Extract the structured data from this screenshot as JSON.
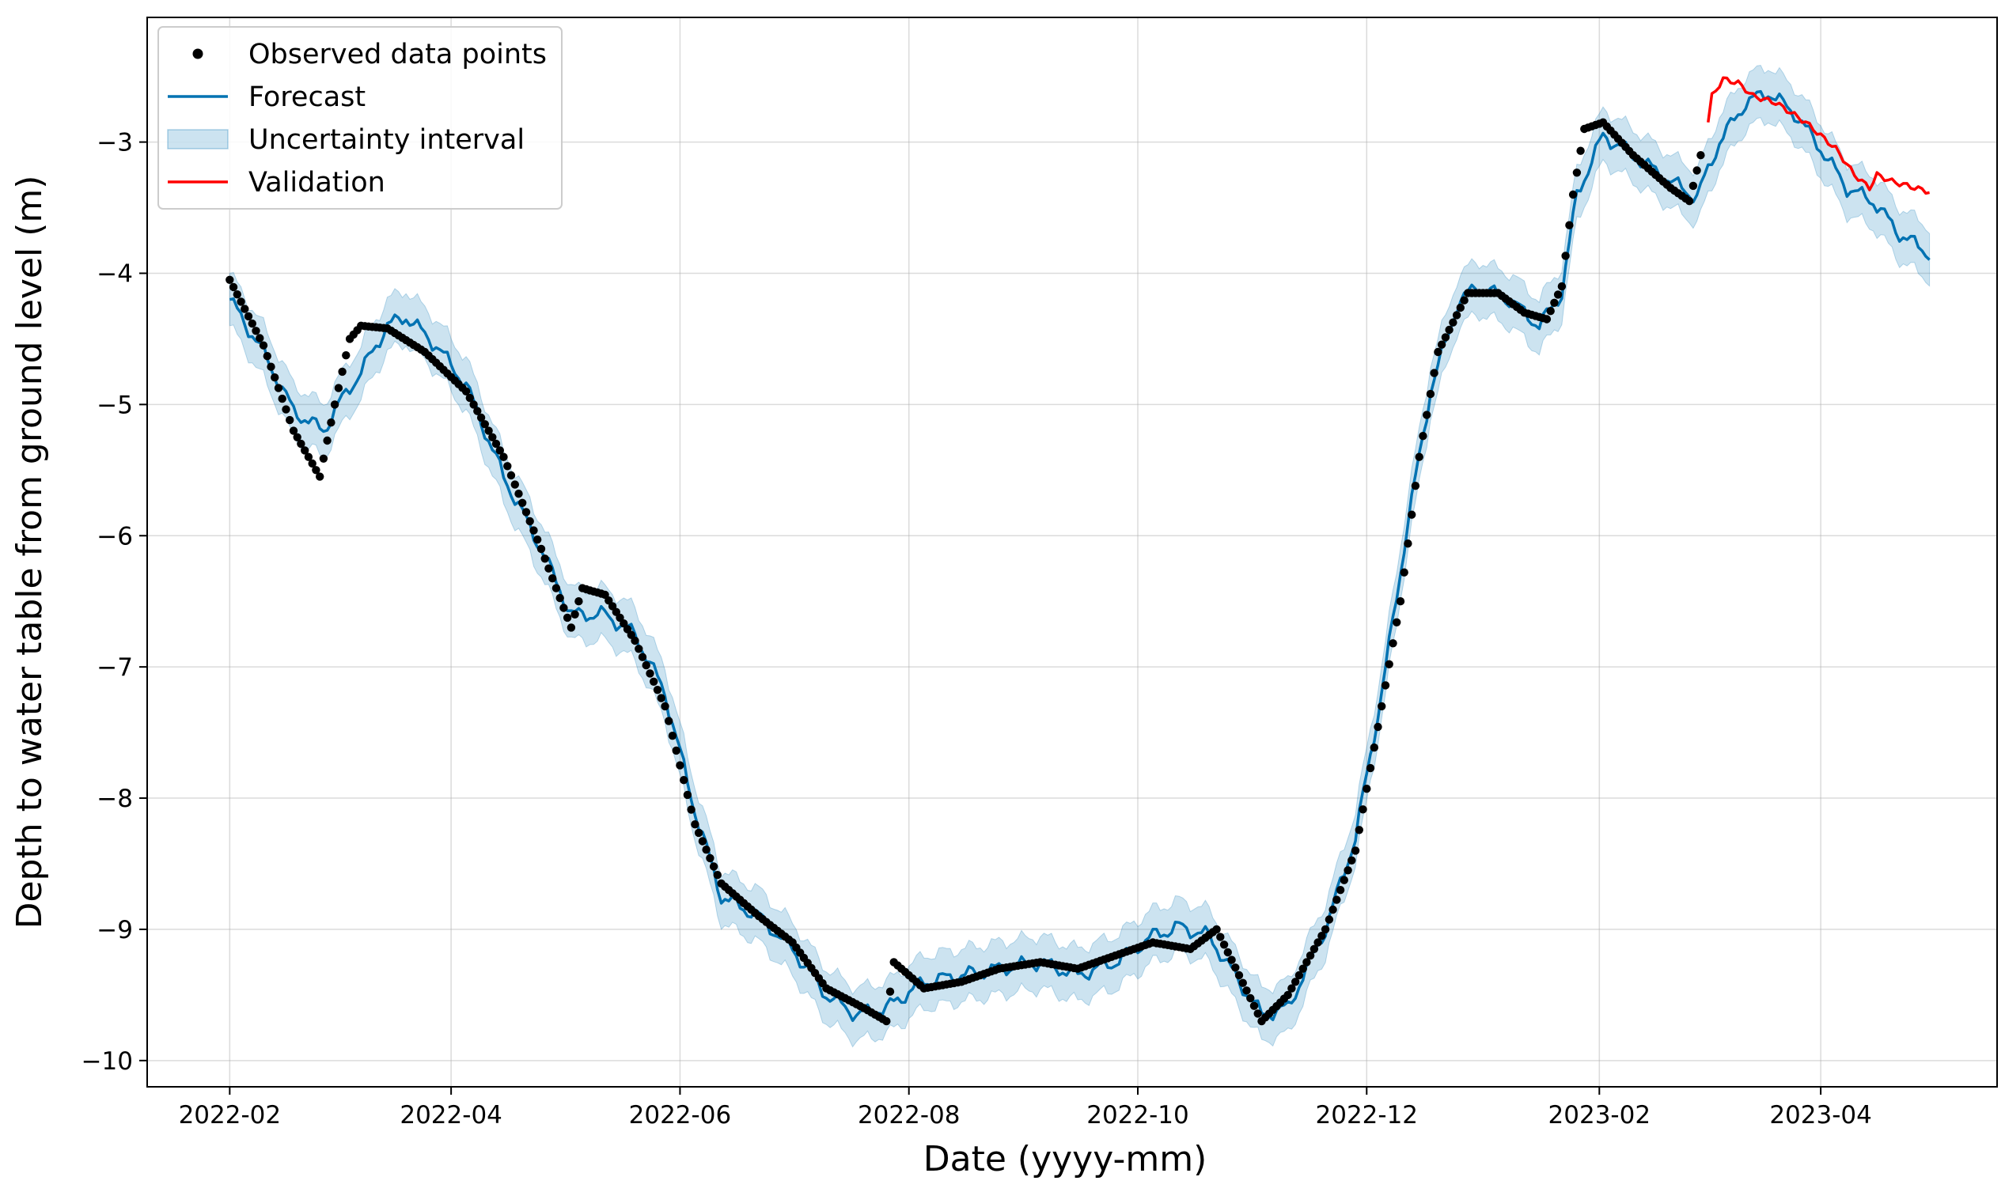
{
  "chart_data": {
    "type": "line",
    "xlabel": "Date (yyyy-mm)",
    "ylabel": "Depth to water table from ground level (m)",
    "xlim": [
      "2022-01-10",
      "2023-05-18"
    ],
    "ylim": [
      -10.2,
      -2.05
    ],
    "grid": true,
    "legend_position": "top-left",
    "x_ticks": [
      "2022-02",
      "2022-04",
      "2022-06",
      "2022-08",
      "2022-10",
      "2022-12",
      "2023-02",
      "2023-04"
    ],
    "x_tick_dates": [
      "2022-02-01",
      "2022-04-01",
      "2022-06-01",
      "2022-08-01",
      "2022-10-01",
      "2022-12-01",
      "2023-02-01",
      "2023-04-01"
    ],
    "y_ticks": [
      -3,
      -4,
      -5,
      -6,
      -7,
      -8,
      -9,
      -10
    ],
    "y_tick_labels": [
      "−3",
      "−4",
      "−5",
      "−6",
      "−7",
      "−8",
      "−9",
      "−10"
    ],
    "legend": [
      {
        "label": "Observed data points",
        "kind": "dot",
        "color": "#000000"
      },
      {
        "label": "Forecast",
        "kind": "line",
        "color": "#0072b2"
      },
      {
        "label": "Uncertainty interval",
        "kind": "band",
        "color": "#0072b2"
      },
      {
        "label": "Validation",
        "kind": "line",
        "color": "#ff0000"
      }
    ],
    "colors": {
      "observed": "#000000",
      "forecast": "#0072b2",
      "band": "#0072b2",
      "validation": "#ff0000"
    },
    "observed_keypoints": [
      [
        "2022-02-01",
        -4.05
      ],
      [
        "2022-02-10",
        -4.55
      ],
      [
        "2022-02-18",
        -5.2
      ],
      [
        "2022-02-25",
        -5.55
      ],
      [
        "2022-03-01",
        -5.0
      ],
      [
        "2022-03-05",
        -4.5
      ],
      [
        "2022-03-08",
        -4.4
      ],
      [
        "2022-03-15",
        -4.42
      ],
      [
        "2022-03-25",
        -4.6
      ],
      [
        "2022-04-05",
        -4.9
      ],
      [
        "2022-04-15",
        -5.4
      ],
      [
        "2022-04-25",
        -6.1
      ],
      [
        "2022-05-03",
        -6.7
      ],
      [
        "2022-05-06",
        -6.4
      ],
      [
        "2022-05-12",
        -6.45
      ],
      [
        "2022-05-20",
        -6.8
      ],
      [
        "2022-05-28",
        -7.3
      ],
      [
        "2022-06-05",
        -8.2
      ],
      [
        "2022-06-12",
        -8.65
      ],
      [
        "2022-06-22",
        -8.9
      ],
      [
        "2022-07-01",
        -9.1
      ],
      [
        "2022-07-10",
        -9.45
      ],
      [
        "2022-07-20",
        -9.6
      ],
      [
        "2022-07-26",
        -9.7
      ],
      [
        "2022-07-28",
        -9.25
      ],
      [
        "2022-08-05",
        -9.45
      ],
      [
        "2022-08-15",
        -9.4
      ],
      [
        "2022-08-25",
        -9.3
      ],
      [
        "2022-09-05",
        -9.25
      ],
      [
        "2022-09-15",
        -9.3
      ],
      [
        "2022-09-25",
        -9.2
      ],
      [
        "2022-10-05",
        -9.1
      ],
      [
        "2022-10-15",
        -9.15
      ],
      [
        "2022-10-22",
        -9.0
      ],
      [
        "2022-10-28",
        -9.35
      ],
      [
        "2022-11-03",
        -9.7
      ],
      [
        "2022-11-10",
        -9.5
      ],
      [
        "2022-11-20",
        -9.0
      ],
      [
        "2022-11-28",
        -8.4
      ],
      [
        "2022-12-05",
        -7.3
      ],
      [
        "2022-12-10",
        -6.5
      ],
      [
        "2022-12-15",
        -5.4
      ],
      [
        "2022-12-20",
        -4.6
      ],
      [
        "2022-12-28",
        -4.15
      ],
      [
        "2023-01-05",
        -4.15
      ],
      [
        "2023-01-12",
        -4.3
      ],
      [
        "2023-01-18",
        -4.35
      ],
      [
        "2023-01-22",
        -4.1
      ],
      [
        "2023-01-25",
        -3.4
      ],
      [
        "2023-01-28",
        -2.9
      ],
      [
        "2023-02-02",
        -2.85
      ],
      [
        "2023-02-10",
        -3.1
      ],
      [
        "2023-02-20",
        -3.35
      ],
      [
        "2023-02-25",
        -3.45
      ],
      [
        "2023-02-28",
        -3.1
      ]
    ],
    "forecast_keypoints": [
      [
        "2022-02-01",
        -4.2
      ],
      [
        "2022-02-10",
        -4.6
      ],
      [
        "2022-02-18",
        -5.05
      ],
      [
        "2022-02-26",
        -5.2
      ],
      [
        "2022-03-02",
        -5.0
      ],
      [
        "2022-03-08",
        -4.75
      ],
      [
        "2022-03-15",
        -4.4
      ],
      [
        "2022-03-20",
        -4.33
      ],
      [
        "2022-03-28",
        -4.55
      ],
      [
        "2022-04-05",
        -4.85
      ],
      [
        "2022-04-15",
        -5.55
      ],
      [
        "2022-04-25",
        -6.1
      ],
      [
        "2022-05-03",
        -6.6
      ],
      [
        "2022-05-12",
        -6.6
      ],
      [
        "2022-05-20",
        -6.75
      ],
      [
        "2022-05-28",
        -7.2
      ],
      [
        "2022-06-05",
        -8.1
      ],
      [
        "2022-06-12",
        -8.75
      ],
      [
        "2022-06-22",
        -8.9
      ],
      [
        "2022-07-01",
        -9.15
      ],
      [
        "2022-07-10",
        -9.5
      ],
      [
        "2022-07-18",
        -9.65
      ],
      [
        "2022-07-26",
        -9.6
      ],
      [
        "2022-08-05",
        -9.4
      ],
      [
        "2022-08-15",
        -9.35
      ],
      [
        "2022-08-25",
        -9.3
      ],
      [
        "2022-09-05",
        -9.25
      ],
      [
        "2022-09-15",
        -9.35
      ],
      [
        "2022-09-25",
        -9.25
      ],
      [
        "2022-10-05",
        -9.05
      ],
      [
        "2022-10-12",
        -8.98
      ],
      [
        "2022-10-20",
        -9.05
      ],
      [
        "2022-10-28",
        -9.4
      ],
      [
        "2022-11-03",
        -9.65
      ],
      [
        "2022-11-10",
        -9.6
      ],
      [
        "2022-11-20",
        -9.0
      ],
      [
        "2022-11-28",
        -8.3
      ],
      [
        "2022-12-05",
        -7.2
      ],
      [
        "2022-12-12",
        -5.9
      ],
      [
        "2022-12-18",
        -4.9
      ],
      [
        "2022-12-25",
        -4.25
      ],
      [
        "2022-12-30",
        -4.1
      ],
      [
        "2023-01-08",
        -4.2
      ],
      [
        "2023-01-16",
        -4.4
      ],
      [
        "2023-01-22",
        -4.15
      ],
      [
        "2023-01-26",
        -3.4
      ],
      [
        "2023-02-02",
        -2.95
      ],
      [
        "2023-02-10",
        -3.1
      ],
      [
        "2023-02-20",
        -3.3
      ],
      [
        "2023-02-27",
        -3.42
      ],
      [
        "2023-03-05",
        -3.0
      ],
      [
        "2023-03-12",
        -2.7
      ],
      [
        "2023-03-18",
        -2.62
      ],
      [
        "2023-03-25",
        -2.78
      ],
      [
        "2023-04-01",
        -3.05
      ],
      [
        "2023-04-08",
        -3.35
      ],
      [
        "2023-04-15",
        -3.45
      ],
      [
        "2023-04-22",
        -3.7
      ],
      [
        "2023-04-30",
        -3.85
      ]
    ],
    "validation_keypoints": [
      [
        "2023-03-02",
        -2.85
      ],
      [
        "2023-03-03",
        -2.65
      ],
      [
        "2023-03-06",
        -2.52
      ],
      [
        "2023-03-10",
        -2.55
      ],
      [
        "2023-03-14",
        -2.65
      ],
      [
        "2023-03-20",
        -2.7
      ],
      [
        "2023-03-28",
        -2.85
      ],
      [
        "2023-04-05",
        -3.05
      ],
      [
        "2023-04-10",
        -3.25
      ],
      [
        "2023-04-14",
        -3.35
      ],
      [
        "2023-04-16",
        -3.25
      ],
      [
        "2023-04-20",
        -3.3
      ],
      [
        "2023-04-30",
        -3.38
      ]
    ],
    "band_halfwidth": 0.2
  }
}
